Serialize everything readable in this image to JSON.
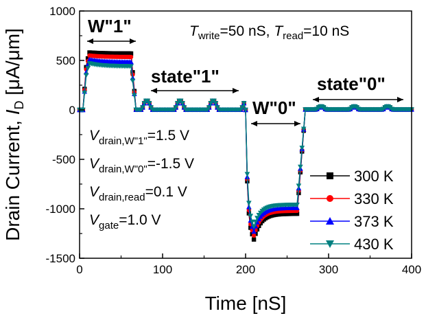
{
  "chart_data": {
    "type": "line",
    "title": "",
    "xlabel": "Time [nS]",
    "ylabel_main": "Drain Current, ",
    "ylabel_var": "I",
    "ylabel_sub": "D",
    "ylabel_unit": " [μA/μm]",
    "xlim": [
      0,
      400
    ],
    "ylim": [
      -1500,
      1000
    ],
    "x_ticks": [
      "0",
      "100",
      "200",
      "300",
      "400"
    ],
    "y_ticks": [
      "-1500",
      "-1000",
      "-500",
      "0",
      "500",
      "1000"
    ],
    "grid": false,
    "legend_position": "bottom-right",
    "annotations": {
      "write1": "W\"1\"",
      "state1": "state\"1\"",
      "write0": "W\"0\"",
      "state0": "state\"0\"",
      "timing": {
        "t1": "T",
        "t1_sub": "write",
        "t1_val": "=50 nS, ",
        "t2": "T",
        "t2_sub": "read",
        "t2_val": "=10 nS"
      },
      "conditions": [
        {
          "var": "V",
          "sub": "drain,W\"1\"",
          "val": "=1.5 V"
        },
        {
          "var": "V",
          "sub": "drain,W\"0\"",
          "val": "=-1.5 V"
        },
        {
          "var": "V",
          "sub": "drain,read",
          "val": "=0.1 V"
        },
        {
          "var": "V",
          "sub": "gate",
          "val": "=1.0 V"
        }
      ]
    },
    "series": [
      {
        "name": "300 K",
        "color": "#000000",
        "marker": "square",
        "w1_peak": 580,
        "w1_level": 570,
        "w0_min": -1310,
        "w0_level": -1050
      },
      {
        "name": "330 K",
        "color": "#ff0000",
        "marker": "circle",
        "w1_peak": 550,
        "w1_level": 535,
        "w0_min": -1270,
        "w0_level": -1020
      },
      {
        "name": "373 K",
        "color": "#0000ff",
        "marker": "triangle-up",
        "w1_peak": 510,
        "w1_level": 485,
        "w0_min": -1230,
        "w0_level": -990
      },
      {
        "name": "430 K",
        "color": "#008080",
        "marker": "triangle-down",
        "w1_peak": 470,
        "w1_level": 440,
        "w0_min": -1180,
        "w0_level": -960
      }
    ]
  }
}
